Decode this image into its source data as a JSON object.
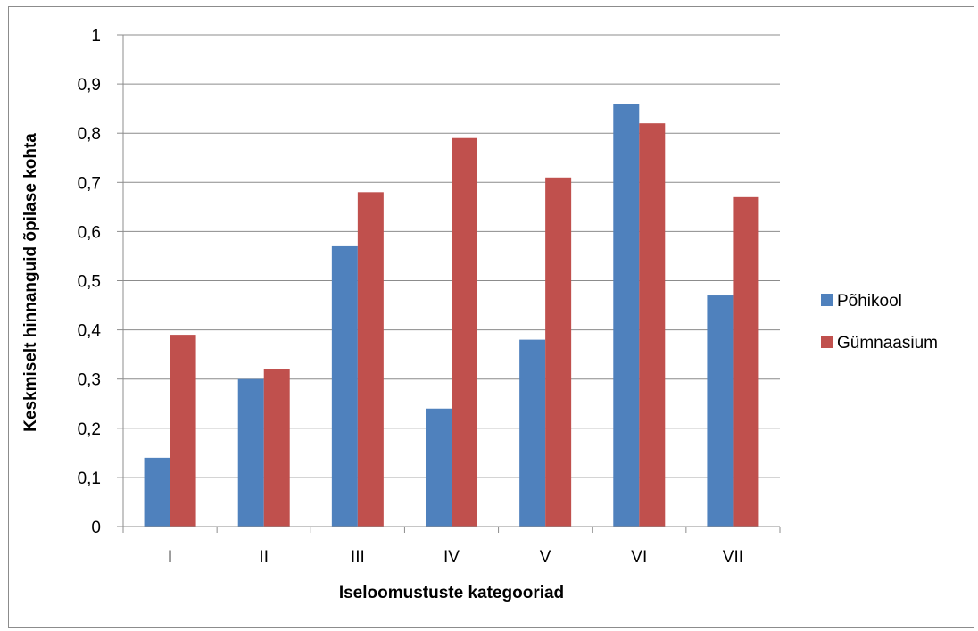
{
  "chart_data": {
    "type": "bar",
    "title": "",
    "xlabel": "Iseloomustuste kategooriad",
    "ylabel": "Keskmiselt hinnanguid õpilase kohta",
    "categories": [
      "I",
      "II",
      "III",
      "IV",
      "V",
      "VI",
      "VII"
    ],
    "series": [
      {
        "name": "Põhikool",
        "color": "#4f81bd",
        "values": [
          0.14,
          0.3,
          0.57,
          0.24,
          0.38,
          0.86,
          0.47
        ]
      },
      {
        "name": "Gümnaasium",
        "color": "#c0504d",
        "values": [
          0.39,
          0.32,
          0.68,
          0.79,
          0.71,
          0.82,
          0.67
        ]
      }
    ],
    "ylim": [
      0,
      1
    ],
    "yticks": [
      0,
      0.1,
      0.2,
      0.3,
      0.4,
      0.5,
      0.6,
      0.7,
      0.8,
      0.9,
      1
    ],
    "ytick_labels": [
      "0",
      "0,1",
      "0,2",
      "0,3",
      "0,4",
      "0,5",
      "0,6",
      "0,7",
      "0,8",
      "0,9",
      "1"
    ],
    "grid": true,
    "legend_position": "right"
  }
}
